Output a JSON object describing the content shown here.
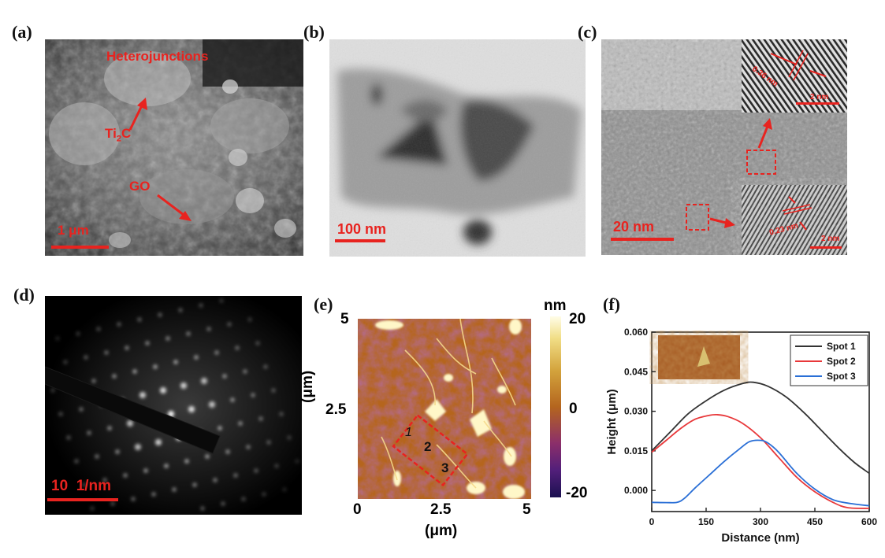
{
  "panels": {
    "a": {
      "label": "(a)",
      "annotations": {
        "heterojunctions": "Heterojunctions",
        "ti2c": "Ti",
        "ti2c_sub": "2",
        "ti2c_end": "C",
        "go": "GO"
      },
      "scale": "1 μm"
    },
    "b": {
      "label": "(b)",
      "scale": "100 nm"
    },
    "c": {
      "label": "(c)",
      "scale": "20 nm",
      "inset_top_spacing": "0.36 nm",
      "inset_bottom_spacing": "0.23 nm",
      "inset_top_scale": "2 nm",
      "inset_bottom_scale": "2 nm"
    },
    "d": {
      "label": "(d)",
      "scale": "10  1/nm"
    },
    "e": {
      "label": "(e)",
      "spots": [
        "1",
        "2",
        "3"
      ],
      "colorbar": {
        "unit": "nm",
        "ticks": [
          "20",
          "0",
          "-20"
        ]
      },
      "yticks": [
        "5",
        "2.5"
      ],
      "xticks": [
        "0",
        "2.5",
        "5"
      ],
      "ylabel": "(μm)",
      "xlabel": "(μm)"
    },
    "f": {
      "label": "(f)"
    }
  },
  "colors": {
    "annotation_red": "#e8231f",
    "spot1": "#333333",
    "spot2": "#e8383a",
    "spot3": "#2a6fd6"
  },
  "chart_data": {
    "type": "line",
    "xlabel": "Distance (nm)",
    "ylabel": "Height (μm)",
    "xlim": [
      0,
      600
    ],
    "ylim": [
      -0.008,
      0.06
    ],
    "xticks": [
      0,
      150,
      300,
      450,
      600
    ],
    "yticks": [
      0.0,
      0.015,
      0.03,
      0.045,
      0.06
    ],
    "ytick_labels": [
      "0.000",
      "0.015",
      "0.030",
      "0.045",
      "0.060"
    ],
    "legend_position": "top-right",
    "series": [
      {
        "name": "Spot 1",
        "color": "#333333",
        "x": [
          0,
          50,
          100,
          150,
          200,
          250,
          280,
          320,
          370,
          420,
          470,
          520,
          560,
          600
        ],
        "y": [
          0.015,
          0.022,
          0.029,
          0.034,
          0.038,
          0.0405,
          0.041,
          0.0395,
          0.0355,
          0.0295,
          0.0225,
          0.0155,
          0.0105,
          0.0065
        ]
      },
      {
        "name": "Spot 2",
        "color": "#e8383a",
        "x": [
          0,
          40,
          80,
          120,
          160,
          180,
          210,
          250,
          300,
          350,
          400,
          450,
          500,
          540,
          600
        ],
        "y": [
          0.0145,
          0.019,
          0.0235,
          0.027,
          0.0285,
          0.0287,
          0.028,
          0.0255,
          0.02,
          0.0125,
          0.005,
          -0.0005,
          -0.0045,
          -0.0065,
          -0.0068
        ]
      },
      {
        "name": "Spot 3",
        "color": "#2a6fd6",
        "x": [
          0,
          40,
          70,
          90,
          120,
          160,
          200,
          240,
          270,
          300,
          320,
          350,
          400,
          450,
          500,
          550,
          600
        ],
        "y": [
          -0.0045,
          -0.0046,
          -0.0045,
          -0.003,
          0.001,
          0.006,
          0.011,
          0.0155,
          0.0185,
          0.019,
          0.018,
          0.0145,
          0.0065,
          0.0005,
          -0.0035,
          -0.005,
          -0.0058
        ]
      }
    ]
  }
}
